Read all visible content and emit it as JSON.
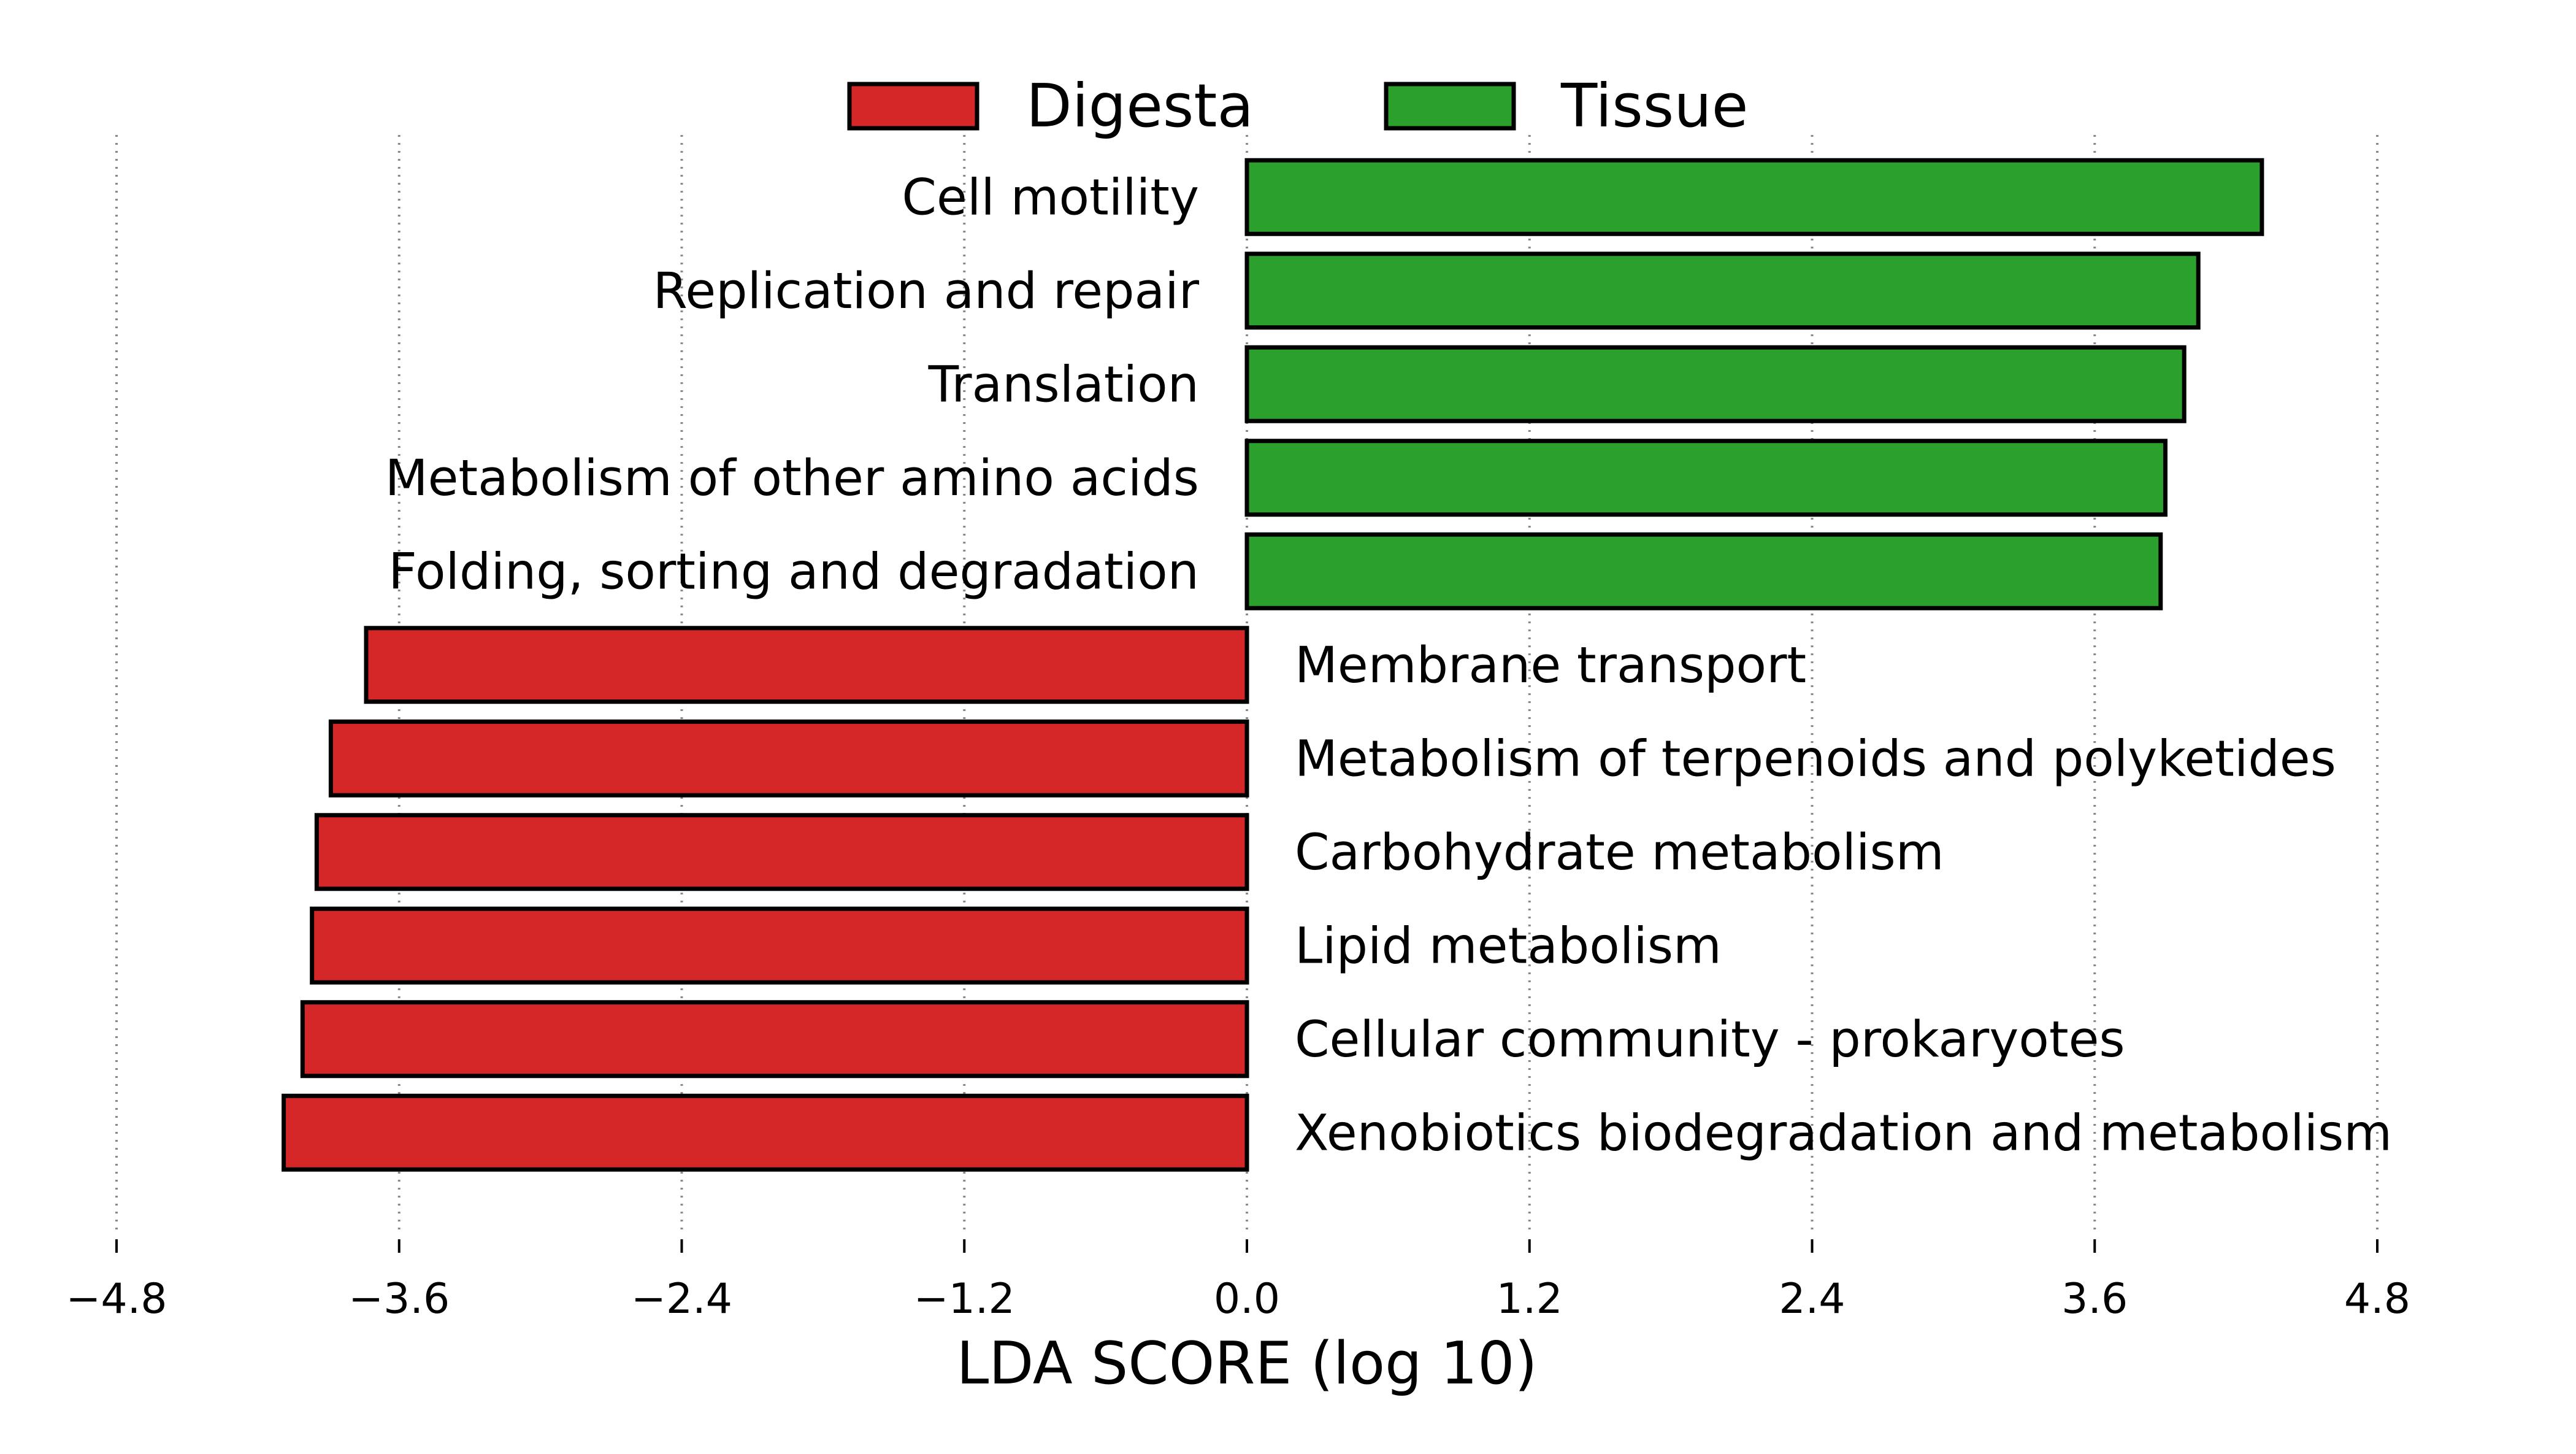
{
  "chart_data": {
    "type": "bar",
    "orientation": "horizontal",
    "xlabel": "LDA SCORE (log 10)",
    "xlim": [
      -4.8,
      4.8
    ],
    "xticks": [
      -4.8,
      -3.6,
      -2.4,
      -1.2,
      0.0,
      1.2,
      2.4,
      3.6,
      4.8
    ],
    "xtick_labels": [
      "−4.8",
      "−3.6",
      "−2.4",
      "−1.2",
      "0.0",
      "1.2",
      "2.4",
      "3.6",
      "4.8"
    ],
    "grid": "x-dotted",
    "legend_position": "top-center",
    "legend": [
      {
        "name": "Digesta",
        "color": "#d62728"
      },
      {
        "name": "Tissue",
        "color": "#2ca02c"
      }
    ],
    "categories": [
      "Cell motility",
      "Replication and repair",
      "Translation",
      "Metabolism of other amino acids",
      "Folding, sorting and degradation",
      "Membrane transport",
      "Metabolism of terpenoids and polyketides",
      "Carbohydrate metabolism",
      "Lipid metabolism",
      "Cellular community - prokaryotes",
      "Xenobiotics biodegradation and metabolism"
    ],
    "values": [
      4.31,
      4.04,
      3.98,
      3.9,
      3.88,
      -3.74,
      -3.89,
      -3.95,
      -3.97,
      -4.01,
      -4.09
    ],
    "groups": [
      "Tissue",
      "Tissue",
      "Tissue",
      "Tissue",
      "Tissue",
      "Digesta",
      "Digesta",
      "Digesta",
      "Digesta",
      "Digesta",
      "Digesta"
    ]
  }
}
